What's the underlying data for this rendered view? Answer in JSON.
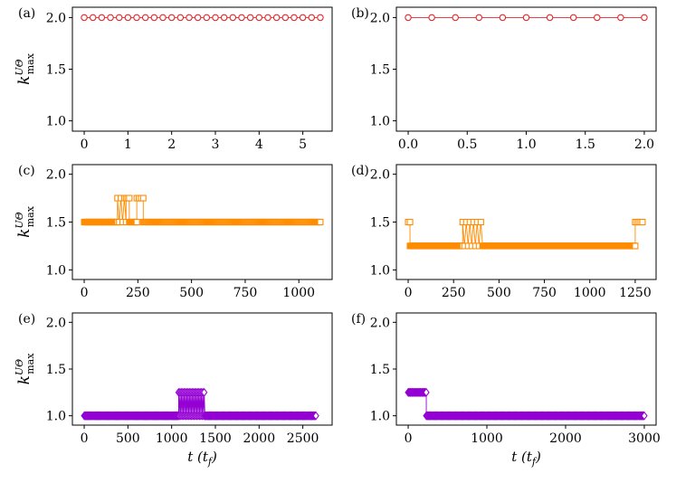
{
  "colors": {
    "red": "#e8262a",
    "orange": "#ff8c00",
    "purple": "#9400d3"
  },
  "chart_data": [
    {
      "panel": "(a)",
      "type": "line",
      "marker": "circle",
      "color": "#e8262a",
      "xlim": [
        -0.27,
        5.67
      ],
      "ylim": [
        0.9,
        2.1
      ],
      "xticks": [
        0,
        1,
        2,
        3,
        4,
        5
      ],
      "xtick_labels": [
        "0",
        "1",
        "2",
        "3",
        "4",
        "5"
      ],
      "yticks": [
        1.0,
        1.5,
        2.0
      ],
      "ytick_labels": [
        "1.0",
        "1.5",
        "2.0"
      ],
      "ylabel": "k",
      "ylabel_sup": "UΘ",
      "ylabel_sub": "max",
      "xlabel": "",
      "segments": [
        {
          "x0": 0,
          "x1": 5.4,
          "n": 28,
          "y": 2.0
        }
      ]
    },
    {
      "panel": "(b)",
      "type": "line",
      "marker": "circle",
      "color": "#e8262a",
      "xlim": [
        -0.1,
        2.1
      ],
      "ylim": [
        0.9,
        2.1
      ],
      "xticks": [
        0,
        0.5,
        1,
        1.5,
        2
      ],
      "xtick_labels": [
        "0.0",
        "0.5",
        "1.0",
        "1.5",
        "2.0"
      ],
      "yticks": [
        1.0,
        1.5,
        2.0
      ],
      "ytick_labels": [
        "1.0",
        "1.5",
        "2.0"
      ],
      "xlabel": "",
      "segments": [
        {
          "x0": 0,
          "x1": 2.0,
          "n": 11,
          "y": 2.0
        }
      ]
    },
    {
      "panel": "(c)",
      "type": "line",
      "marker": "square",
      "color": "#ff8c00",
      "xlim": [
        -55,
        1155
      ],
      "ylim": [
        0.9,
        2.1
      ],
      "xticks": [
        0,
        250,
        500,
        750,
        1000
      ],
      "xtick_labels": [
        "0",
        "250",
        "500",
        "750",
        "1000"
      ],
      "yticks": [
        1.0,
        1.5,
        2.0
      ],
      "ytick_labels": [
        "1.0",
        "1.5",
        "2.0"
      ],
      "ylabel": "k",
      "ylabel_sup": "UΘ",
      "ylabel_sub": "max",
      "xlabel": "",
      "segments": [
        {
          "x0": 0,
          "x1": 155,
          "n": 60,
          "y": 1.5
        },
        {
          "x0": 155,
          "x1": 195,
          "n": 6,
          "y": 1.75,
          "alt": 1.5
        },
        {
          "x0": 195,
          "x1": 210,
          "n": 3,
          "y": 1.75
        },
        {
          "x0": 210,
          "x1": 245,
          "n": 12,
          "y": 1.5
        },
        {
          "x0": 245,
          "x1": 275,
          "n": 4,
          "y": 1.75
        },
        {
          "x0": 275,
          "x1": 1100,
          "n": 200,
          "y": 1.5
        }
      ]
    },
    {
      "panel": "(d)",
      "type": "line",
      "marker": "square",
      "color": "#ff8c00",
      "xlim": [
        -65,
        1365
      ],
      "ylim": [
        0.9,
        2.1
      ],
      "xticks": [
        0,
        250,
        500,
        750,
        1000,
        1250
      ],
      "xtick_labels": [
        "0",
        "250",
        "500",
        "750",
        "1000",
        "1250"
      ],
      "yticks": [
        1.0,
        1.5,
        2.0
      ],
      "ytick_labels": [
        "1.0",
        "1.5",
        "2.0"
      ],
      "xlabel": "",
      "segments": [
        {
          "x0": 0,
          "x1": 10,
          "n": 2,
          "y": 1.5
        },
        {
          "x0": 10,
          "x1": 300,
          "n": 110,
          "y": 1.25
        },
        {
          "x0": 300,
          "x1": 410,
          "n": 12,
          "y": 1.5,
          "alt": 1.25
        },
        {
          "x0": 410,
          "x1": 1250,
          "n": 300,
          "y": 1.25
        },
        {
          "x0": 1250,
          "x1": 1290,
          "n": 5,
          "y": 1.5
        }
      ]
    },
    {
      "panel": "(e)",
      "type": "line",
      "marker": "diamond",
      "color": "#9400d3",
      "xlim": [
        -135,
        2835
      ],
      "ylim": [
        0.9,
        2.1
      ],
      "xticks": [
        0,
        500,
        1000,
        1500,
        2000,
        2500
      ],
      "xtick_labels": [
        "0",
        "500",
        "1000",
        "1500",
        "2000",
        "2500"
      ],
      "yticks": [
        1.0,
        1.5,
        2.0
      ],
      "ytick_labels": [
        "1.0",
        "1.5",
        "2.0"
      ],
      "ylabel": "k",
      "ylabel_sup": "UΘ",
      "ylabel_sub": "max",
      "xlabel": "t (t",
      "xlabel_sub": "f",
      "xlabel_close": ")",
      "segments": [
        {
          "x0": 0,
          "x1": 1080,
          "n": 200,
          "y": 1.0
        },
        {
          "x0": 1080,
          "x1": 1380,
          "n": 40,
          "y": 1.25,
          "alt": 1.0
        },
        {
          "x0": 1380,
          "x1": 2650,
          "n": 230,
          "y": 1.0
        }
      ]
    },
    {
      "panel": "(f)",
      "type": "line",
      "marker": "diamond",
      "color": "#9400d3",
      "xlim": [
        -150,
        3150
      ],
      "ylim": [
        0.9,
        2.1
      ],
      "xticks": [
        0,
        1000,
        2000,
        3000
      ],
      "xtick_labels": [
        "0",
        "1000",
        "2000",
        "3000"
      ],
      "yticks": [
        1.0,
        1.5,
        2.0
      ],
      "ytick_labels": [
        "1.0",
        "1.5",
        "2.0"
      ],
      "xlabel": "t (t",
      "xlabel_sub": "f",
      "xlabel_close": ")",
      "segments": [
        {
          "x0": 0,
          "x1": 230,
          "n": 30,
          "y": 1.25
        },
        {
          "x0": 230,
          "x1": 3000,
          "n": 450,
          "y": 1.0
        }
      ]
    }
  ]
}
